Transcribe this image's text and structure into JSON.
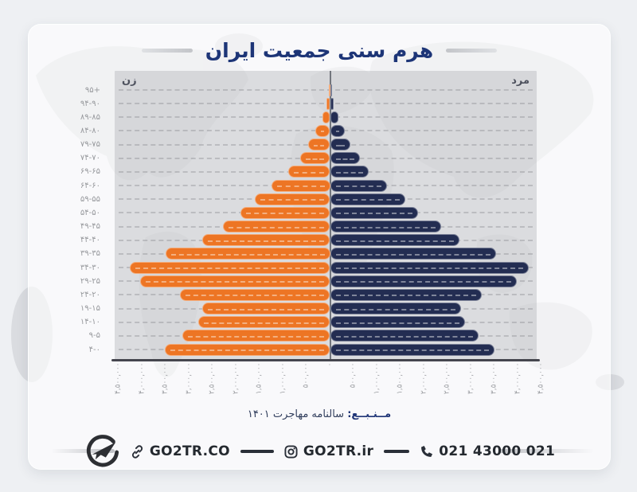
{
  "title": "هرم سنی جمعیت ایران",
  "chart_data": {
    "type": "bar",
    "subtype": "population-pyramid",
    "title": "هرم سنی جمعیت ایران",
    "grid": "dashed-horizontal",
    "xlim_each_side": [
      0,
      4500000
    ],
    "x_tick_step": 500000,
    "categories": [
      "۹۵+",
      "۹۴-۹۰",
      "۸۹-۸۵",
      "۸۴-۸۰",
      "۷۹-۷۵",
      "۷۴-۷۰",
      "۶۹-۶۵",
      "۶۴-۶۰",
      "۵۹-۵۵",
      "۵۴-۵۰",
      "۴۹-۴۵",
      "۴۴-۴۰",
      "۳۹-۳۵",
      "۳۴-۳۰",
      "۲۹-۲۵",
      "۲۴-۲۰",
      "۱۹-۱۵",
      "۱۴-۱۰",
      "۹-۵",
      "۴-۰"
    ],
    "series": [
      {
        "name": "زن",
        "side": "left",
        "color": "#ed7524",
        "values": [
          20000,
          75000,
          160000,
          320000,
          470000,
          630000,
          890000,
          1250000,
          1610000,
          1910000,
          2280000,
          2720000,
          3500000,
          4270000,
          4050000,
          3190000,
          2720000,
          2810000,
          3150000,
          3520000
        ]
      },
      {
        "name": "مرد",
        "side": "right",
        "color": "#232d52",
        "values": [
          20000,
          80000,
          170000,
          320000,
          440000,
          640000,
          830000,
          1220000,
          1600000,
          1880000,
          2360000,
          2760000,
          3530000,
          4230000,
          3980000,
          3230000,
          2780000,
          2870000,
          3160000,
          3500000
        ]
      }
    ],
    "x_tick_labels": [
      "۴,۵۰۰,۰۰۰",
      "۴,۰۰۰,۰۰۰",
      "۳,۵۰۰,۰۰۰",
      "۳,۰۰۰,۰۰۰",
      "۲,۵۰۰,۰۰۰",
      "۲,۰۰۰,۰۰۰",
      "۱,۵۰۰,۰۰۰",
      "۱,۰۰۰,۰۰۰",
      "۵۰۰,۰۰۰",
      "۰",
      "۵۰۰,۰۰۰",
      "۱,۰۰۰,۰۰۰",
      "۱,۵۰۰,۰۰۰",
      "۲,۰۰۰,۰۰۰",
      "۲,۵۰۰,۰۰۰",
      "۳,۰۰۰,۰۰۰",
      "۳,۵۰۰,۰۰۰",
      "۴,۰۰۰,۰۰۰",
      "۴,۵۰۰,۰۰۰"
    ],
    "left_header": "زن",
    "right_header": "مرد"
  },
  "source": {
    "label": "مــنـبــع:",
    "text": "سالنامه مهاجرت ۱۴۰۱"
  },
  "footer": {
    "website": "GO2TR.CO",
    "instagram": "GO2TR.ir",
    "phone": "021 43000 021"
  },
  "colors": {
    "female_bar": "#ed7524",
    "male_bar": "#232d52",
    "title": "#1d3577",
    "axis": "#45464e",
    "plot_bg": "#d8d9dc"
  }
}
